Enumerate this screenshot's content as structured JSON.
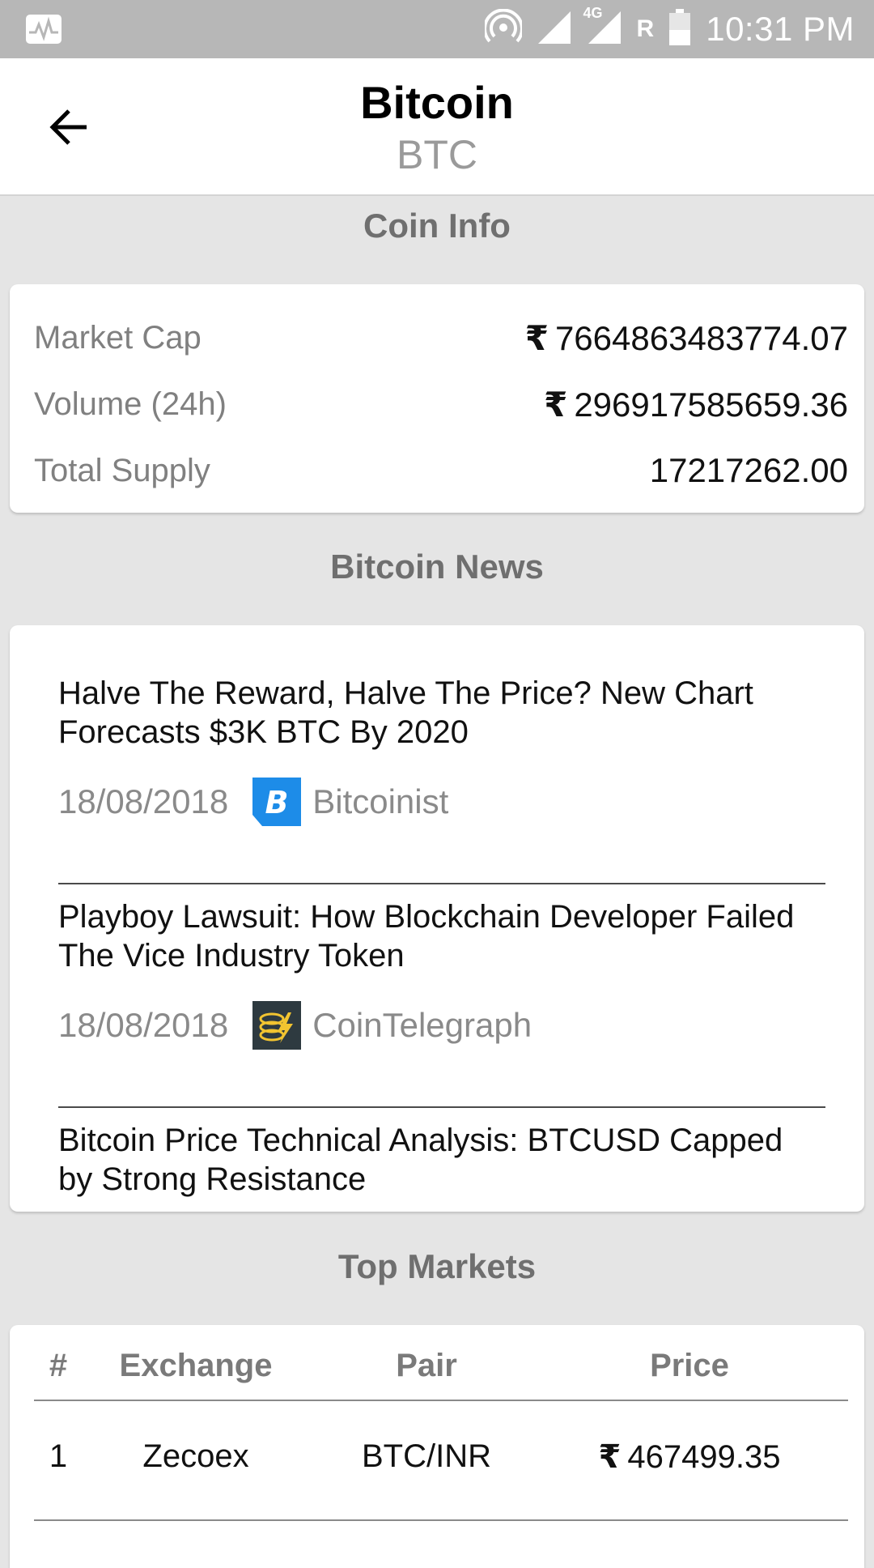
{
  "status_bar": {
    "time": "10:31 PM",
    "network": "4G",
    "roaming": "R"
  },
  "header": {
    "title": "Bitcoin",
    "subtitle": "BTC"
  },
  "coin_info": {
    "heading": "Coin Info",
    "currency_symbol": "₹",
    "rows": [
      {
        "label": "Market Cap",
        "value": "7664863483774.07"
      },
      {
        "label": "Volume (24h)",
        "value": "296917585659.36"
      },
      {
        "label": "Total Supply",
        "value": "17217262.00"
      }
    ]
  },
  "news": {
    "heading": "Bitcoin News",
    "items": [
      {
        "title": "Halve The Reward, Halve The Price? New Chart Forecasts $3K BTC By 2020",
        "date": "18/08/2018",
        "source": "Bitcoinist"
      },
      {
        "title": "Playboy Lawsuit: How Blockchain Developer Failed The Vice Industry Token",
        "date": "18/08/2018",
        "source": "CoinTelegraph"
      },
      {
        "title": "Bitcoin Price Technical Analysis: BTCUSD Capped by Strong Resistance"
      }
    ]
  },
  "markets": {
    "heading": "Top Markets",
    "columns": [
      "#",
      "Exchange",
      "Pair",
      "Price"
    ],
    "rows": [
      {
        "rank": "1",
        "exchange": "Zecoex",
        "pair": "BTC/INR",
        "price": "467499.35"
      }
    ]
  },
  "colors": {
    "status_bar": "#b7b7b7",
    "background": "#e5e5e5",
    "bitcoinist_blue": "#1d8ce8",
    "cointelegraph_dark": "#2e3a40",
    "cointelegraph_yellow": "#f2c430"
  }
}
